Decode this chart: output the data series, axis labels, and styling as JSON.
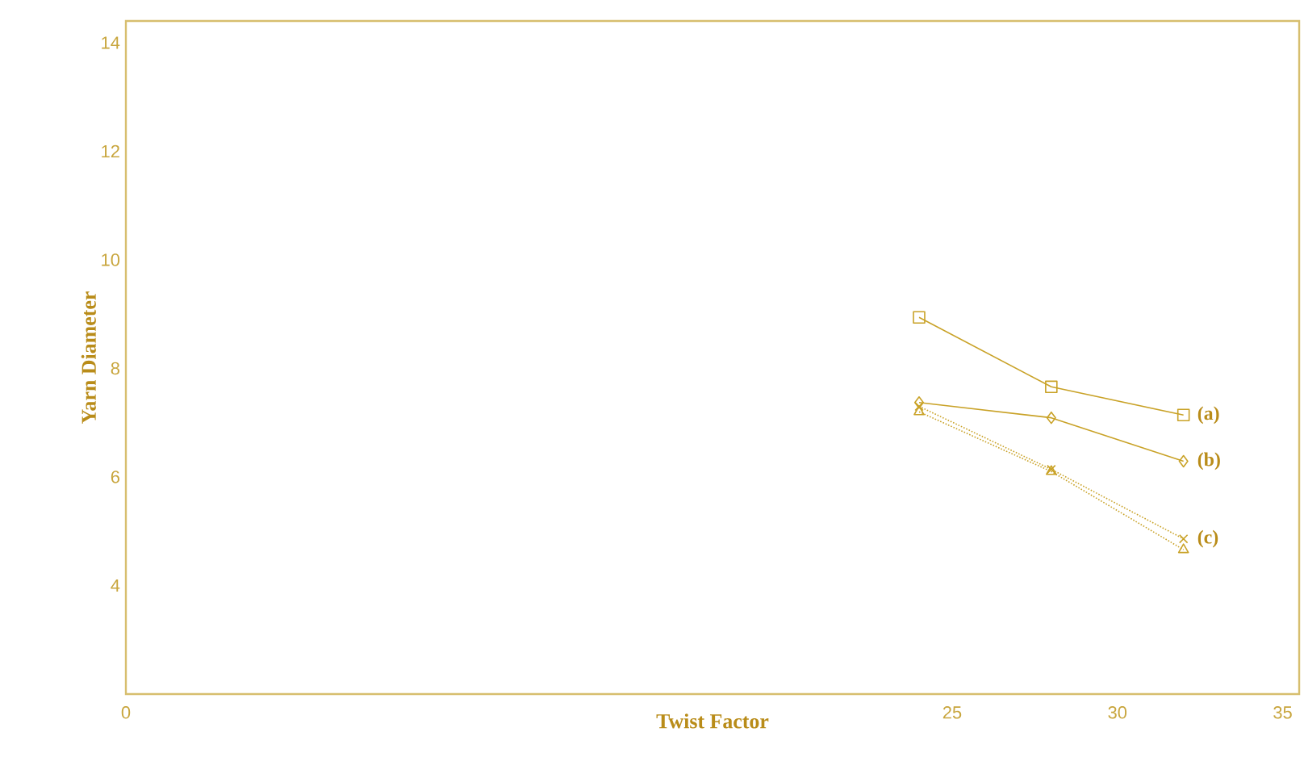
{
  "chart_data": {
    "type": "line",
    "xlabel": "Twist Factor",
    "ylabel": "Yarn Diameter",
    "x": [
      24,
      28,
      32
    ],
    "xlim": [
      0,
      35.5
    ],
    "xticks": [
      0,
      25,
      30,
      35
    ],
    "ylim": [
      2,
      14.4
    ],
    "yticks": [
      4,
      6,
      8,
      10,
      12,
      14
    ],
    "grid": false,
    "series": [
      {
        "name": "(a)",
        "color": "#c9a227",
        "marker": "square",
        "line_style": "solid",
        "values": [
          8.94,
          7.66,
          7.14
        ]
      },
      {
        "name": "(b)",
        "color": "#c9a227",
        "marker": "diamond",
        "line_style": "solid",
        "values": [
          7.37,
          7.09,
          6.29
        ]
      },
      {
        "name": "(c)",
        "color": "#c9a227",
        "marker": "cross",
        "line_style": "dotted",
        "values": [
          7.3,
          6.14,
          4.86
        ]
      },
      {
        "color": "#c9a227",
        "marker": "triangle",
        "line_style": "dotted",
        "values": [
          7.2,
          6.1,
          4.66
        ]
      }
    ]
  }
}
